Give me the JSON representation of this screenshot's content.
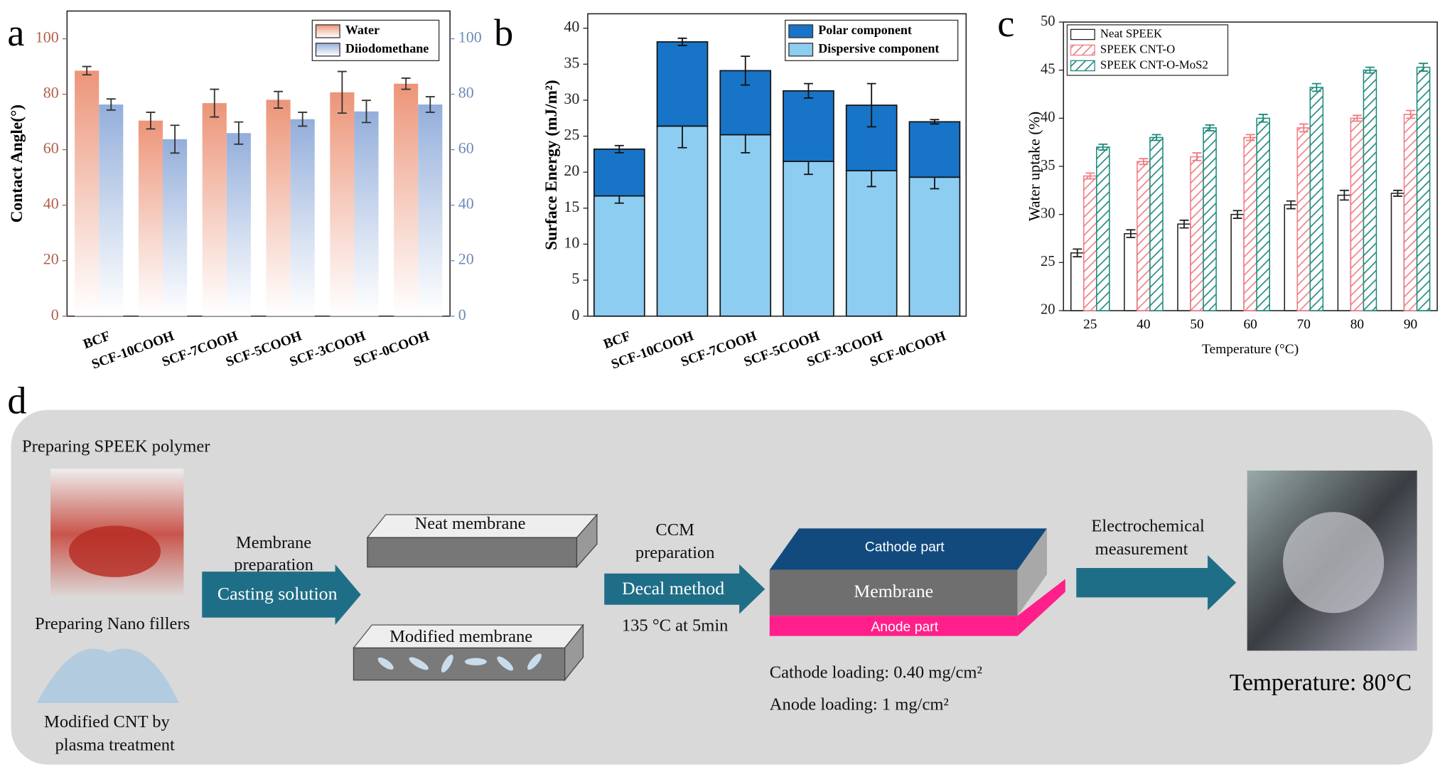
{
  "chart_data": [
    {
      "type": "bar",
      "panel": "a",
      "ylabel": "Contact Angle(°)",
      "categories": [
        "BCF",
        "SCF-10COOH",
        "SCF-7COOH",
        "SCF-5COOH",
        "SCF-3COOH",
        "SCF-0COOH"
      ],
      "series": [
        {
          "name": "Water",
          "color": "#ec9478",
          "values": [
            88.5,
            70.5,
            76.8,
            78,
            80.7,
            83.8
          ],
          "errors": [
            1.5,
            3,
            5,
            3,
            7.5,
            2
          ]
        },
        {
          "name": "Diiodomethane",
          "color": "#93aedb",
          "axis": "y2",
          "values": [
            76.3,
            63.8,
            66,
            71,
            73.8,
            76.3
          ],
          "errors": [
            2,
            5,
            4,
            2.5,
            4,
            2.8
          ]
        }
      ],
      "ylim": [
        0,
        110
      ],
      "yticks": [
        0,
        20,
        40,
        60,
        80,
        100
      ],
      "y2lim": [
        0,
        110
      ],
      "y2ticks": [
        0,
        20,
        40,
        60,
        80,
        100
      ],
      "ycolor": "#b0604a",
      "y2color": "#6d8ab5",
      "legend": "upper right"
    },
    {
      "type": "stacked_bar",
      "panel": "b",
      "ylabel": "Surface Energy (mJ/m²)",
      "categories": [
        "BCF",
        "SCF-10COOH",
        "SCF-7COOH",
        "SCF-5COOH",
        "SCF-3COOH",
        "SCF-0COOH"
      ],
      "series": [
        {
          "name": "Dispersive component",
          "color": "#8ecdf2",
          "values": [
            16.7,
            26.4,
            25.2,
            21.5,
            20.2,
            19.3
          ],
          "errors": [
            1,
            3,
            2.5,
            1.8,
            2.2,
            1.6
          ]
        },
        {
          "name": "Polar component",
          "color": "#1874c6",
          "values": [
            6.5,
            11.7,
            8.9,
            9.8,
            9.1,
            7.7
          ],
          "errors": [
            0.5,
            0.5,
            2,
            1,
            3,
            0.3
          ]
        }
      ],
      "ylim": [
        0,
        42
      ],
      "yticks": [
        0,
        5,
        10,
        15,
        20,
        25,
        30,
        35,
        40
      ],
      "legend": "upper right"
    },
    {
      "type": "bar",
      "panel": "c",
      "ylabel": "Water uptake (%)",
      "xlabel": "Temperature (°C)",
      "categories": [
        "25",
        "40",
        "50",
        "60",
        "70",
        "80",
        "90"
      ],
      "series": [
        {
          "name": "Neat SPEEK",
          "color": "#222222",
          "values": [
            26,
            28,
            29,
            30,
            31,
            32,
            32.2
          ],
          "errors": [
            0.4,
            0.4,
            0.4,
            0.4,
            0.4,
            0.5,
            0.3
          ]
        },
        {
          "name": "SPEEK CNT-O",
          "color": "#f07c84",
          "hatch": true,
          "values": [
            34,
            35.5,
            36,
            38,
            39,
            40,
            40.4
          ],
          "errors": [
            0.3,
            0.3,
            0.4,
            0.3,
            0.4,
            0.3,
            0.4
          ]
        },
        {
          "name": "SPEEK CNT-O-MoS2",
          "color": "#1d8a7c",
          "hatch": true,
          "values": [
            37,
            38,
            39,
            40,
            43.2,
            45,
            45.3
          ],
          "errors": [
            0.3,
            0.3,
            0.3,
            0.4,
            0.4,
            0.3,
            0.4
          ]
        }
      ],
      "ylim": [
        20,
        50
      ],
      "yticks": [
        20,
        25,
        30,
        35,
        40,
        45,
        50
      ],
      "legend": "upper left"
    }
  ],
  "diagram": {
    "panel": "d",
    "speek": "Preparing SPEEK polymer",
    "fillers": "Preparing Nano fillers",
    "cnt": [
      "Modified CNT by",
      "plasma treatment"
    ],
    "membrane_prep": [
      "Membrane",
      "preparation"
    ],
    "casting": "Casting solution",
    "neat": "Neat membrane",
    "modified": "Modified membrane",
    "ccm": [
      "CCM",
      "preparation"
    ],
    "decal": "Decal method",
    "condition": "135 °C at 5min",
    "cathode": "Cathode part",
    "membrane": "Membrane",
    "anode": "Anode part",
    "cathode_loading": "Cathode loading: 0.40 mg/cm²",
    "anode_loading": "Anode loading: 1 mg/cm²",
    "measurement": [
      "Electrochemical",
      "measurement"
    ],
    "temperature": "Temperature: 80°C"
  }
}
